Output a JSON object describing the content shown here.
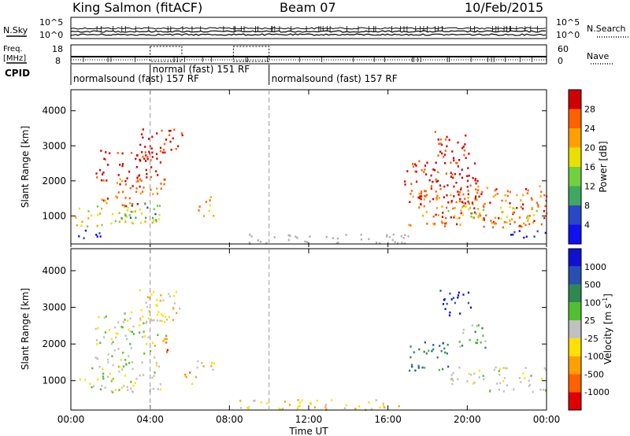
{
  "header": {
    "site": "King Salmon (fitACF)",
    "beam": "Beam 07",
    "date": "10/Feb/2015"
  },
  "chart_data": [
    {
      "type": "line",
      "panel": "noise",
      "left_label": "N.Sky",
      "right_label": "N.Search",
      "left_ticks": [
        "10^5",
        "10^0"
      ],
      "right_ticks": [
        "10^5",
        "10^0"
      ],
      "series": [
        {
          "name": "N.Sky",
          "style": "solid"
        },
        {
          "name": "N.Search",
          "style": "dotted"
        }
      ]
    },
    {
      "type": "line",
      "panel": "frequency-nave",
      "left_label": "Freq. [MHz]",
      "right_label": "Nave",
      "left_ticks": [
        "18",
        "8"
      ],
      "right_ticks": [
        "60",
        "0"
      ],
      "series": [
        {
          "name": "Freq. [MHz]",
          "style": "solid"
        },
        {
          "name": "Nave",
          "style": "dotted"
        }
      ]
    },
    {
      "type": "table",
      "panel": "cpid",
      "label": "CPID",
      "segments": [
        {
          "text": "normalsound (fast) 157 RF",
          "start_h": 0,
          "end_h": 4.0
        },
        {
          "text": "normal (fast) 151 RF",
          "start_h": 4.0,
          "end_h": 10.0
        },
        {
          "text": "normalsound (fast) 157 RF",
          "start_h": 10.0,
          "end_h": 24.0
        }
      ]
    },
    {
      "type": "heatmap",
      "panel": "power",
      "ylabel": "Slant Range [km]",
      "yticks": [
        1000,
        2000,
        3000,
        4000
      ],
      "ylim": [
        200,
        4600
      ],
      "xlim": [
        0,
        24
      ],
      "colorbar": {
        "label": "Power [dB]",
        "ticks": [
          "28",
          "24",
          "20",
          "16",
          "12",
          "8",
          "4"
        ],
        "colors": [
          "#d00000",
          "#ff6000",
          "#ffa000",
          "#e8e000",
          "#70d040",
          "#40a860",
          "#2848c8",
          "#1010f0"
        ]
      },
      "regions": [
        {
          "t0": 0.2,
          "t1": 4.6,
          "r0": 700,
          "r1": 1300,
          "level": 3
        },
        {
          "t0": 1.5,
          "t1": 4.8,
          "r0": 1300,
          "r1": 2100,
          "level": 1
        },
        {
          "t0": 1.2,
          "t1": 4.5,
          "r0": 2100,
          "r1": 2900,
          "level": 0
        },
        {
          "t0": 3.2,
          "t1": 5.6,
          "r0": 2600,
          "r1": 3500,
          "level": 0
        },
        {
          "t0": 2.5,
          "t1": 4.5,
          "r0": 900,
          "r1": 1400,
          "level": 5
        },
        {
          "t0": 6.3,
          "t1": 7.3,
          "r0": 1000,
          "r1": 1600,
          "level": 2
        },
        {
          "t0": 17.0,
          "t1": 24.0,
          "r0": 700,
          "r1": 1900,
          "level": 1
        },
        {
          "t0": 16.8,
          "t1": 20.5,
          "r0": 1400,
          "r1": 2600,
          "level": 0
        },
        {
          "t0": 18.3,
          "t1": 20.2,
          "r0": 2600,
          "r1": 3500,
          "level": 0
        },
        {
          "t0": 19.0,
          "t1": 23.5,
          "r0": 900,
          "r1": 1300,
          "level": 3
        },
        {
          "t0": 0.3,
          "t1": 1.5,
          "r0": 350,
          "r1": 650,
          "level": 7
        },
        {
          "t0": 22.0,
          "t1": 24.0,
          "r0": 350,
          "r1": 650,
          "level": 7
        },
        {
          "t0": 8.5,
          "t1": 17.0,
          "r0": 220,
          "r1": 500,
          "level": -1
        }
      ]
    },
    {
      "type": "heatmap",
      "panel": "velocity",
      "xlabel": "Time UT",
      "ylabel": "Slant Range [km]",
      "yticks": [
        1000,
        2000,
        3000,
        4000
      ],
      "ylim": [
        200,
        4600
      ],
      "xlim": [
        0,
        24
      ],
      "xticks": [
        "00:00",
        "04:00",
        "08:00",
        "12:00",
        "16:00",
        "20:00",
        "00:00"
      ],
      "colorbar": {
        "label": "Velocity [m s^-1]",
        "ticks": [
          "1000",
          "500",
          "100",
          "25",
          "-25",
          "-100",
          "-500",
          "-1000"
        ],
        "colors": [
          "#1010d0",
          "#2850b0",
          "#308850",
          "#50c030",
          "#c0c0c0",
          "#ffe000",
          "#ffa000",
          "#ff6000",
          "#e00000"
        ]
      },
      "regions": [
        {
          "t0": 0.2,
          "t1": 4.6,
          "r0": 700,
          "r1": 1400,
          "level": 4
        },
        {
          "t0": 1.2,
          "t1": 4.8,
          "r0": 1400,
          "r1": 2900,
          "level": 4
        },
        {
          "t0": 4.2,
          "t1": 4.9,
          "r0": 1700,
          "r1": 2300,
          "level": 7
        },
        {
          "t0": 3.3,
          "t1": 5.5,
          "r0": 2600,
          "r1": 3500,
          "level": 5
        },
        {
          "t0": 5.5,
          "t1": 6.5,
          "r0": 900,
          "r1": 1300,
          "level": 6
        },
        {
          "t0": 6.3,
          "t1": 7.4,
          "r0": 1300,
          "r1": 1600,
          "level": 5
        },
        {
          "t0": 17.0,
          "t1": 19.0,
          "r0": 1300,
          "r1": 2100,
          "level": 2
        },
        {
          "t0": 19.0,
          "t1": 24.0,
          "r0": 700,
          "r1": 1400,
          "level": 4
        },
        {
          "t0": 18.5,
          "t1": 20.2,
          "r0": 2800,
          "r1": 3500,
          "level": 0
        },
        {
          "t0": 19.5,
          "t1": 21.0,
          "r0": 1900,
          "r1": 2600,
          "level": 3
        },
        {
          "t0": 8.5,
          "t1": 17.0,
          "r0": 220,
          "r1": 500,
          "level": 5
        }
      ]
    }
  ]
}
